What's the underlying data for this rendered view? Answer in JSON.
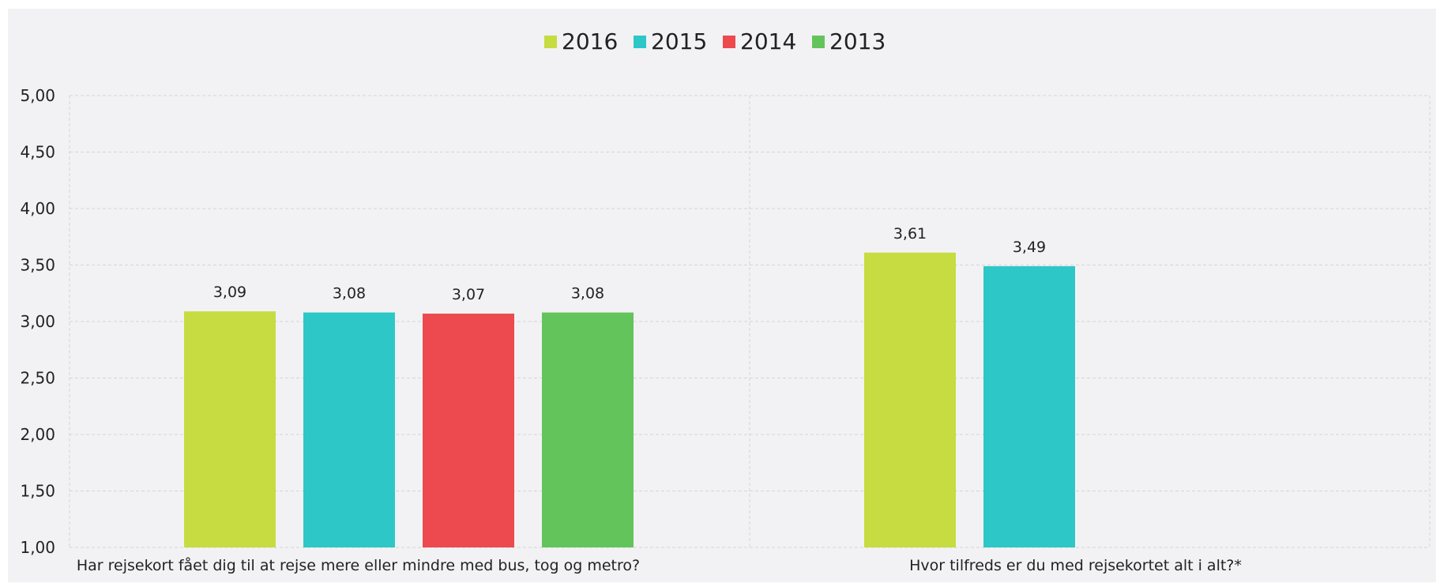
{
  "chart_data": {
    "type": "bar",
    "categories": [
      "Har rejsekort fået dig til at rejse mere eller mindre med bus, tog og metro?",
      "Hvor tilfreds er du med rejsekortet alt i alt?*"
    ],
    "series": [
      {
        "name": "2016",
        "color": "#c6dc41",
        "values": [
          3.09,
          3.61
        ]
      },
      {
        "name": "2015",
        "color": "#2ec7c7",
        "values": [
          3.08,
          3.49
        ]
      },
      {
        "name": "2014",
        "color": "#ec4a4f",
        "values": [
          3.07,
          null
        ]
      },
      {
        "name": "2013",
        "color": "#64c45c",
        "values": [
          3.08,
          null
        ]
      }
    ],
    "value_labels": [
      [
        "3,09",
        "3,61"
      ],
      [
        "3,08",
        "3,49"
      ],
      [
        "3,07",
        ""
      ],
      [
        "3,08",
        ""
      ]
    ],
    "ylim": [
      1.0,
      5.0
    ],
    "yticks": [
      1.0,
      1.5,
      2.0,
      2.5,
      3.0,
      3.5,
      4.0,
      4.5,
      5.0
    ],
    "ytick_labels": [
      "1,00",
      "1,50",
      "2,00",
      "2,50",
      "3,00",
      "3,50",
      "4,00",
      "4,50",
      "5,00"
    ],
    "title": "",
    "xlabel": "",
    "ylabel": "",
    "grid": true,
    "legend_position": "top-center",
    "background_color": "#f2f2f4",
    "grid_color": "#d4d4d6"
  }
}
